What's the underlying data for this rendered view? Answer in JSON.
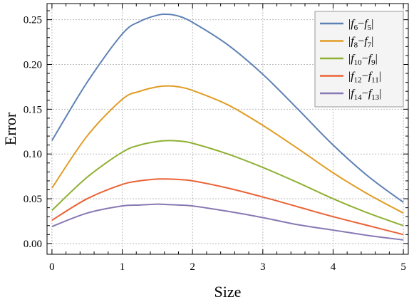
{
  "chart_data": {
    "type": "line",
    "title": "",
    "xlabel": "Size",
    "ylabel": "Error",
    "xlim": [
      -0.07,
      5.07
    ],
    "ylim": [
      -0.012,
      0.268
    ],
    "xticks": [
      0,
      1,
      2,
      3,
      4,
      5
    ],
    "xtick_labels": [
      "0",
      "1",
      "2",
      "3",
      "4",
      "5"
    ],
    "yticks": [
      0.0,
      0.05,
      0.1,
      0.15,
      0.2,
      0.25
    ],
    "ytick_labels": [
      "0.00",
      "0.05",
      "0.10",
      "0.15",
      "0.20",
      "0.25"
    ],
    "grid": true,
    "legend_position": "top-right",
    "series": [
      {
        "name": "|f6−f5|",
        "legend": [
          [
            "|",
            false
          ],
          [
            "f",
            true
          ],
          [
            "6",
            false,
            "sub"
          ],
          [
            "−",
            false
          ],
          [
            "f",
            true
          ],
          [
            "5",
            false,
            "sub"
          ],
          [
            "|",
            false
          ]
        ],
        "color": "#5e81b5",
        "x": [
          0,
          0.5,
          1,
          1.25,
          1.5,
          1.65,
          1.8,
          2,
          2.5,
          3,
          3.5,
          4,
          4.5,
          5
        ],
        "y": [
          0.115,
          0.18,
          0.234,
          0.248,
          0.255,
          0.256,
          0.254,
          0.247,
          0.222,
          0.189,
          0.15,
          0.11,
          0.075,
          0.046
        ]
      },
      {
        "name": "|f8−f7|",
        "legend": [
          [
            "|",
            false
          ],
          [
            "f",
            true
          ],
          [
            "8",
            false,
            "sub"
          ],
          [
            "−",
            false
          ],
          [
            "f",
            true
          ],
          [
            "7",
            false,
            "sub"
          ],
          [
            "|",
            false
          ]
        ],
        "color": "#e19c24",
        "x": [
          0,
          0.5,
          1,
          1.25,
          1.5,
          1.65,
          1.8,
          2,
          2.5,
          3,
          3.5,
          4,
          4.5,
          5
        ],
        "y": [
          0.062,
          0.12,
          0.161,
          0.17,
          0.175,
          0.176,
          0.175,
          0.171,
          0.155,
          0.132,
          0.106,
          0.079,
          0.055,
          0.034
        ]
      },
      {
        "name": "|f10−f9|",
        "legend": [
          [
            "|",
            false
          ],
          [
            "f",
            true
          ],
          [
            "10",
            false,
            "sub"
          ],
          [
            "−",
            false
          ],
          [
            "f",
            true
          ],
          [
            "9",
            false,
            "sub"
          ],
          [
            "|",
            false
          ]
        ],
        "color": "#8fb032",
        "x": [
          0,
          0.5,
          1,
          1.25,
          1.5,
          1.65,
          1.8,
          2,
          2.5,
          3,
          3.5,
          4,
          4.5,
          5
        ],
        "y": [
          0.037,
          0.074,
          0.102,
          0.11,
          0.114,
          0.115,
          0.1145,
          0.112,
          0.1,
          0.085,
          0.068,
          0.05,
          0.034,
          0.02
        ]
      },
      {
        "name": "|f12−f11|",
        "legend": [
          [
            "|",
            false
          ],
          [
            "f",
            true
          ],
          [
            "12",
            false,
            "sub"
          ],
          [
            "−",
            false
          ],
          [
            "f",
            true
          ],
          [
            "11",
            false,
            "sub"
          ],
          [
            "|",
            false
          ]
        ],
        "color": "#eb6235",
        "x": [
          0,
          0.5,
          1,
          1.25,
          1.5,
          1.65,
          1.8,
          2,
          2.5,
          3,
          3.5,
          4,
          4.5,
          5
        ],
        "y": [
          0.026,
          0.05,
          0.066,
          0.07,
          0.072,
          0.072,
          0.0715,
          0.07,
          0.062,
          0.052,
          0.041,
          0.03,
          0.02,
          0.01
        ]
      },
      {
        "name": "|f14−f13|",
        "legend": [
          [
            "|",
            false
          ],
          [
            "f",
            true
          ],
          [
            "14",
            false,
            "sub"
          ],
          [
            "−",
            false
          ],
          [
            "f",
            true
          ],
          [
            "13",
            false,
            "sub"
          ],
          [
            "|",
            false
          ]
        ],
        "color": "#8778b3",
        "x": [
          0,
          0.5,
          1,
          1.25,
          1.5,
          1.65,
          1.8,
          2,
          2.5,
          3,
          3.5,
          4,
          4.5,
          5
        ],
        "y": [
          0.019,
          0.034,
          0.042,
          0.043,
          0.044,
          0.0435,
          0.043,
          0.042,
          0.036,
          0.029,
          0.021,
          0.015,
          0.009,
          0.004
        ]
      }
    ]
  }
}
